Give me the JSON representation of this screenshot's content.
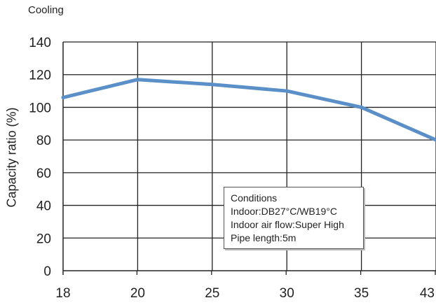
{
  "chart_data": {
    "type": "line",
    "title": "Cooling",
    "xlabel": "",
    "ylabel": "Capacity ratio (%)",
    "x_ticks": [
      "18",
      "20",
      "25",
      "30",
      "35",
      "43"
    ],
    "y_ticks": [
      "0",
      "20",
      "40",
      "60",
      "80",
      "100",
      "120",
      "140"
    ],
    "ylim": [
      0,
      140
    ],
    "grid": true,
    "series": [
      {
        "x": [
          "18",
          "20",
          "25",
          "30",
          "35",
          "43"
        ],
        "values": [
          106,
          117,
          114,
          110,
          100,
          80
        ]
      }
    ],
    "line_color": "#5b8fc7",
    "annotation": {
      "lines": [
        "Conditions",
        "Indoor:DB27°C/WB19°C",
        "Indoor air flow:Super High",
        "Pipe length:5m"
      ]
    }
  }
}
